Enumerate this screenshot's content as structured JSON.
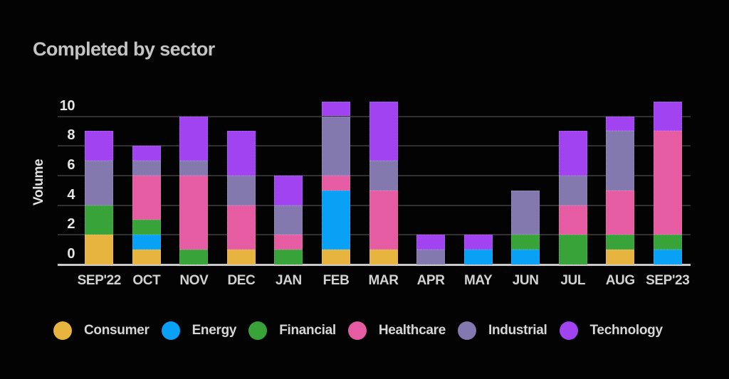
{
  "title": "Completed by sector",
  "chart_data": {
    "type": "bar",
    "stacked": true,
    "title": "Completed by sector",
    "xlabel": "",
    "ylabel": "Volume",
    "categories": [
      "SEP'22",
      "OCT",
      "NOV",
      "DEC",
      "JAN",
      "FEB",
      "MAR",
      "APR",
      "MAY",
      "JUN",
      "JUL",
      "AUG",
      "SEP'23"
    ],
    "series": [
      {
        "name": "Consumer",
        "color": "#e7b43f",
        "values": [
          2,
          1,
          0,
          1,
          0,
          1,
          1,
          0,
          0,
          0,
          0,
          1,
          0
        ]
      },
      {
        "name": "Energy",
        "color": "#09a1f5",
        "values": [
          0,
          1,
          0,
          0,
          0,
          4,
          0,
          0,
          1,
          1,
          0,
          0,
          1
        ]
      },
      {
        "name": "Financial",
        "color": "#38a338",
        "values": [
          2,
          1,
          1,
          0,
          1,
          0,
          0,
          0,
          0,
          1,
          2,
          1,
          1
        ]
      },
      {
        "name": "Healthcare",
        "color": "#e55ca2",
        "values": [
          0,
          3,
          5,
          3,
          1,
          1,
          4,
          0,
          0,
          0,
          2,
          3,
          7
        ]
      },
      {
        "name": "Industrial",
        "color": "#8379ae",
        "values": [
          3,
          1,
          1,
          2,
          2,
          4,
          2,
          1,
          0,
          3,
          2,
          4,
          0
        ]
      },
      {
        "name": "Technology",
        "color": "#a243f2",
        "values": [
          2,
          1,
          3,
          3,
          2,
          1,
          4,
          1,
          1,
          0,
          3,
          1,
          2
        ]
      }
    ],
    "bar_totals": [
      9,
      8,
      10,
      9,
      6,
      11,
      11,
      2,
      2,
      5,
      9,
      10,
      11
    ],
    "y_ticks": [
      0,
      2,
      4,
      6,
      8,
      10
    ],
    "ylim": [
      0,
      11.2
    ],
    "grid": "horizontal",
    "legend_position": "bottom"
  },
  "colors": {
    "background": "#030303",
    "title_text": "#c4c4c4",
    "axis_text": "#e2e2e2",
    "gridline": "#313131",
    "baseline": "#c9c9c9"
  }
}
